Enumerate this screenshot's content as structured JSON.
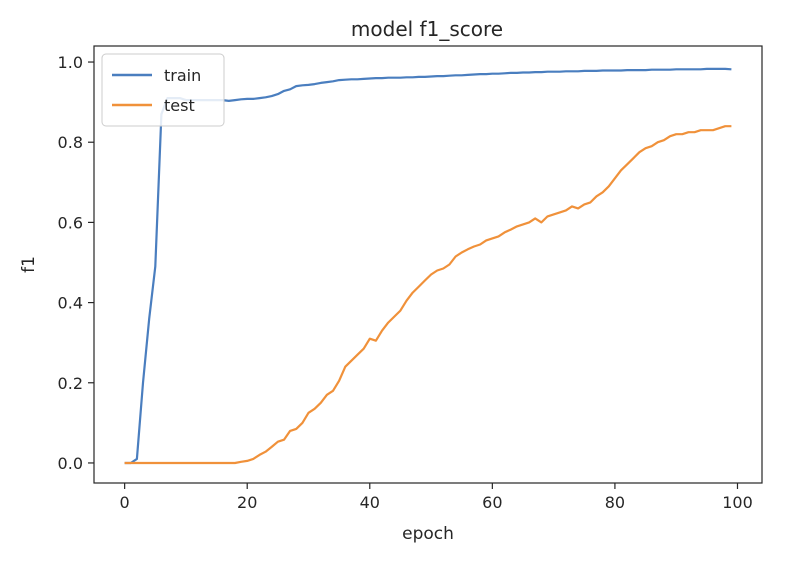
{
  "chart_data": {
    "type": "line",
    "title": "model f1_score",
    "xlabel": "epoch",
    "ylabel": "f1",
    "xlim": [
      -5,
      104
    ],
    "ylim": [
      -0.05,
      1.04
    ],
    "xticks": [
      0,
      20,
      40,
      60,
      80,
      100
    ],
    "yticks": [
      0.0,
      0.2,
      0.4,
      0.6,
      0.8,
      1.0
    ],
    "xtick_labels": [
      "0",
      "20",
      "40",
      "60",
      "80",
      "100"
    ],
    "ytick_labels": [
      "0.0",
      "0.2",
      "0.4",
      "0.6",
      "0.8",
      "1.0"
    ],
    "grid": false,
    "legend_position": "upper-left",
    "series": [
      {
        "name": "train",
        "color": "#4a7ebf",
        "x": [
          0,
          1,
          2,
          3,
          4,
          5,
          6,
          7,
          8,
          9,
          10,
          11,
          12,
          13,
          14,
          15,
          16,
          17,
          18,
          19,
          20,
          21,
          22,
          23,
          24,
          25,
          26,
          27,
          28,
          29,
          30,
          31,
          32,
          33,
          34,
          35,
          36,
          37,
          38,
          39,
          40,
          41,
          42,
          43,
          44,
          45,
          46,
          47,
          48,
          49,
          50,
          51,
          52,
          53,
          54,
          55,
          56,
          57,
          58,
          59,
          60,
          61,
          62,
          63,
          64,
          65,
          66,
          67,
          68,
          69,
          70,
          71,
          72,
          73,
          74,
          75,
          76,
          77,
          78,
          79,
          80,
          81,
          82,
          83,
          84,
          85,
          86,
          87,
          88,
          89,
          90,
          91,
          92,
          93,
          94,
          95,
          96,
          97,
          98,
          99
        ],
        "values": [
          0.0,
          0.0,
          0.01,
          0.2,
          0.36,
          0.49,
          0.87,
          0.91,
          0.91,
          0.91,
          0.905,
          0.905,
          0.905,
          0.905,
          0.905,
          0.905,
          0.905,
          0.903,
          0.905,
          0.907,
          0.908,
          0.908,
          0.91,
          0.912,
          0.915,
          0.92,
          0.928,
          0.932,
          0.94,
          0.942,
          0.943,
          0.945,
          0.948,
          0.95,
          0.952,
          0.955,
          0.956,
          0.957,
          0.957,
          0.958,
          0.959,
          0.96,
          0.96,
          0.961,
          0.961,
          0.961,
          0.962,
          0.962,
          0.963,
          0.963,
          0.964,
          0.965,
          0.965,
          0.966,
          0.967,
          0.967,
          0.968,
          0.969,
          0.97,
          0.97,
          0.971,
          0.971,
          0.972,
          0.973,
          0.973,
          0.974,
          0.974,
          0.975,
          0.975,
          0.976,
          0.976,
          0.976,
          0.977,
          0.977,
          0.977,
          0.978,
          0.978,
          0.978,
          0.979,
          0.979,
          0.979,
          0.979,
          0.98,
          0.98,
          0.98,
          0.98,
          0.981,
          0.981,
          0.981,
          0.981,
          0.982,
          0.982,
          0.982,
          0.982,
          0.982,
          0.983,
          0.983,
          0.983,
          0.983,
          0.982
        ]
      },
      {
        "name": "test",
        "color": "#f0913a",
        "x": [
          0,
          1,
          2,
          3,
          4,
          5,
          6,
          7,
          8,
          9,
          10,
          11,
          12,
          13,
          14,
          15,
          16,
          17,
          18,
          19,
          20,
          21,
          22,
          23,
          24,
          25,
          26,
          27,
          28,
          29,
          30,
          31,
          32,
          33,
          34,
          35,
          36,
          37,
          38,
          39,
          40,
          41,
          42,
          43,
          44,
          45,
          46,
          47,
          48,
          49,
          50,
          51,
          52,
          53,
          54,
          55,
          56,
          57,
          58,
          59,
          60,
          61,
          62,
          63,
          64,
          65,
          66,
          67,
          68,
          69,
          70,
          71,
          72,
          73,
          74,
          75,
          76,
          77,
          78,
          79,
          80,
          81,
          82,
          83,
          84,
          85,
          86,
          87,
          88,
          89,
          90,
          91,
          92,
          93,
          94,
          95,
          96,
          97,
          98,
          99
        ],
        "values": [
          0.0,
          0.0,
          0.0,
          0.0,
          0.0,
          0.0,
          0.0,
          0.0,
          0.0,
          0.0,
          0.0,
          0.0,
          0.0,
          0.0,
          0.0,
          0.0,
          0.0,
          0.0,
          0.0,
          0.003,
          0.005,
          0.01,
          0.02,
          0.028,
          0.04,
          0.053,
          0.058,
          0.08,
          0.085,
          0.1,
          0.125,
          0.135,
          0.15,
          0.17,
          0.18,
          0.205,
          0.24,
          0.255,
          0.27,
          0.285,
          0.31,
          0.305,
          0.33,
          0.35,
          0.365,
          0.38,
          0.405,
          0.425,
          0.44,
          0.455,
          0.47,
          0.48,
          0.485,
          0.495,
          0.515,
          0.525,
          0.533,
          0.54,
          0.545,
          0.555,
          0.56,
          0.565,
          0.575,
          0.582,
          0.59,
          0.595,
          0.6,
          0.61,
          0.6,
          0.615,
          0.62,
          0.625,
          0.63,
          0.64,
          0.635,
          0.645,
          0.65,
          0.665,
          0.675,
          0.69,
          0.71,
          0.73,
          0.745,
          0.76,
          0.775,
          0.785,
          0.79,
          0.8,
          0.805,
          0.815,
          0.82,
          0.82,
          0.825,
          0.825,
          0.83,
          0.83,
          0.83,
          0.835,
          0.84,
          0.84
        ]
      }
    ]
  }
}
